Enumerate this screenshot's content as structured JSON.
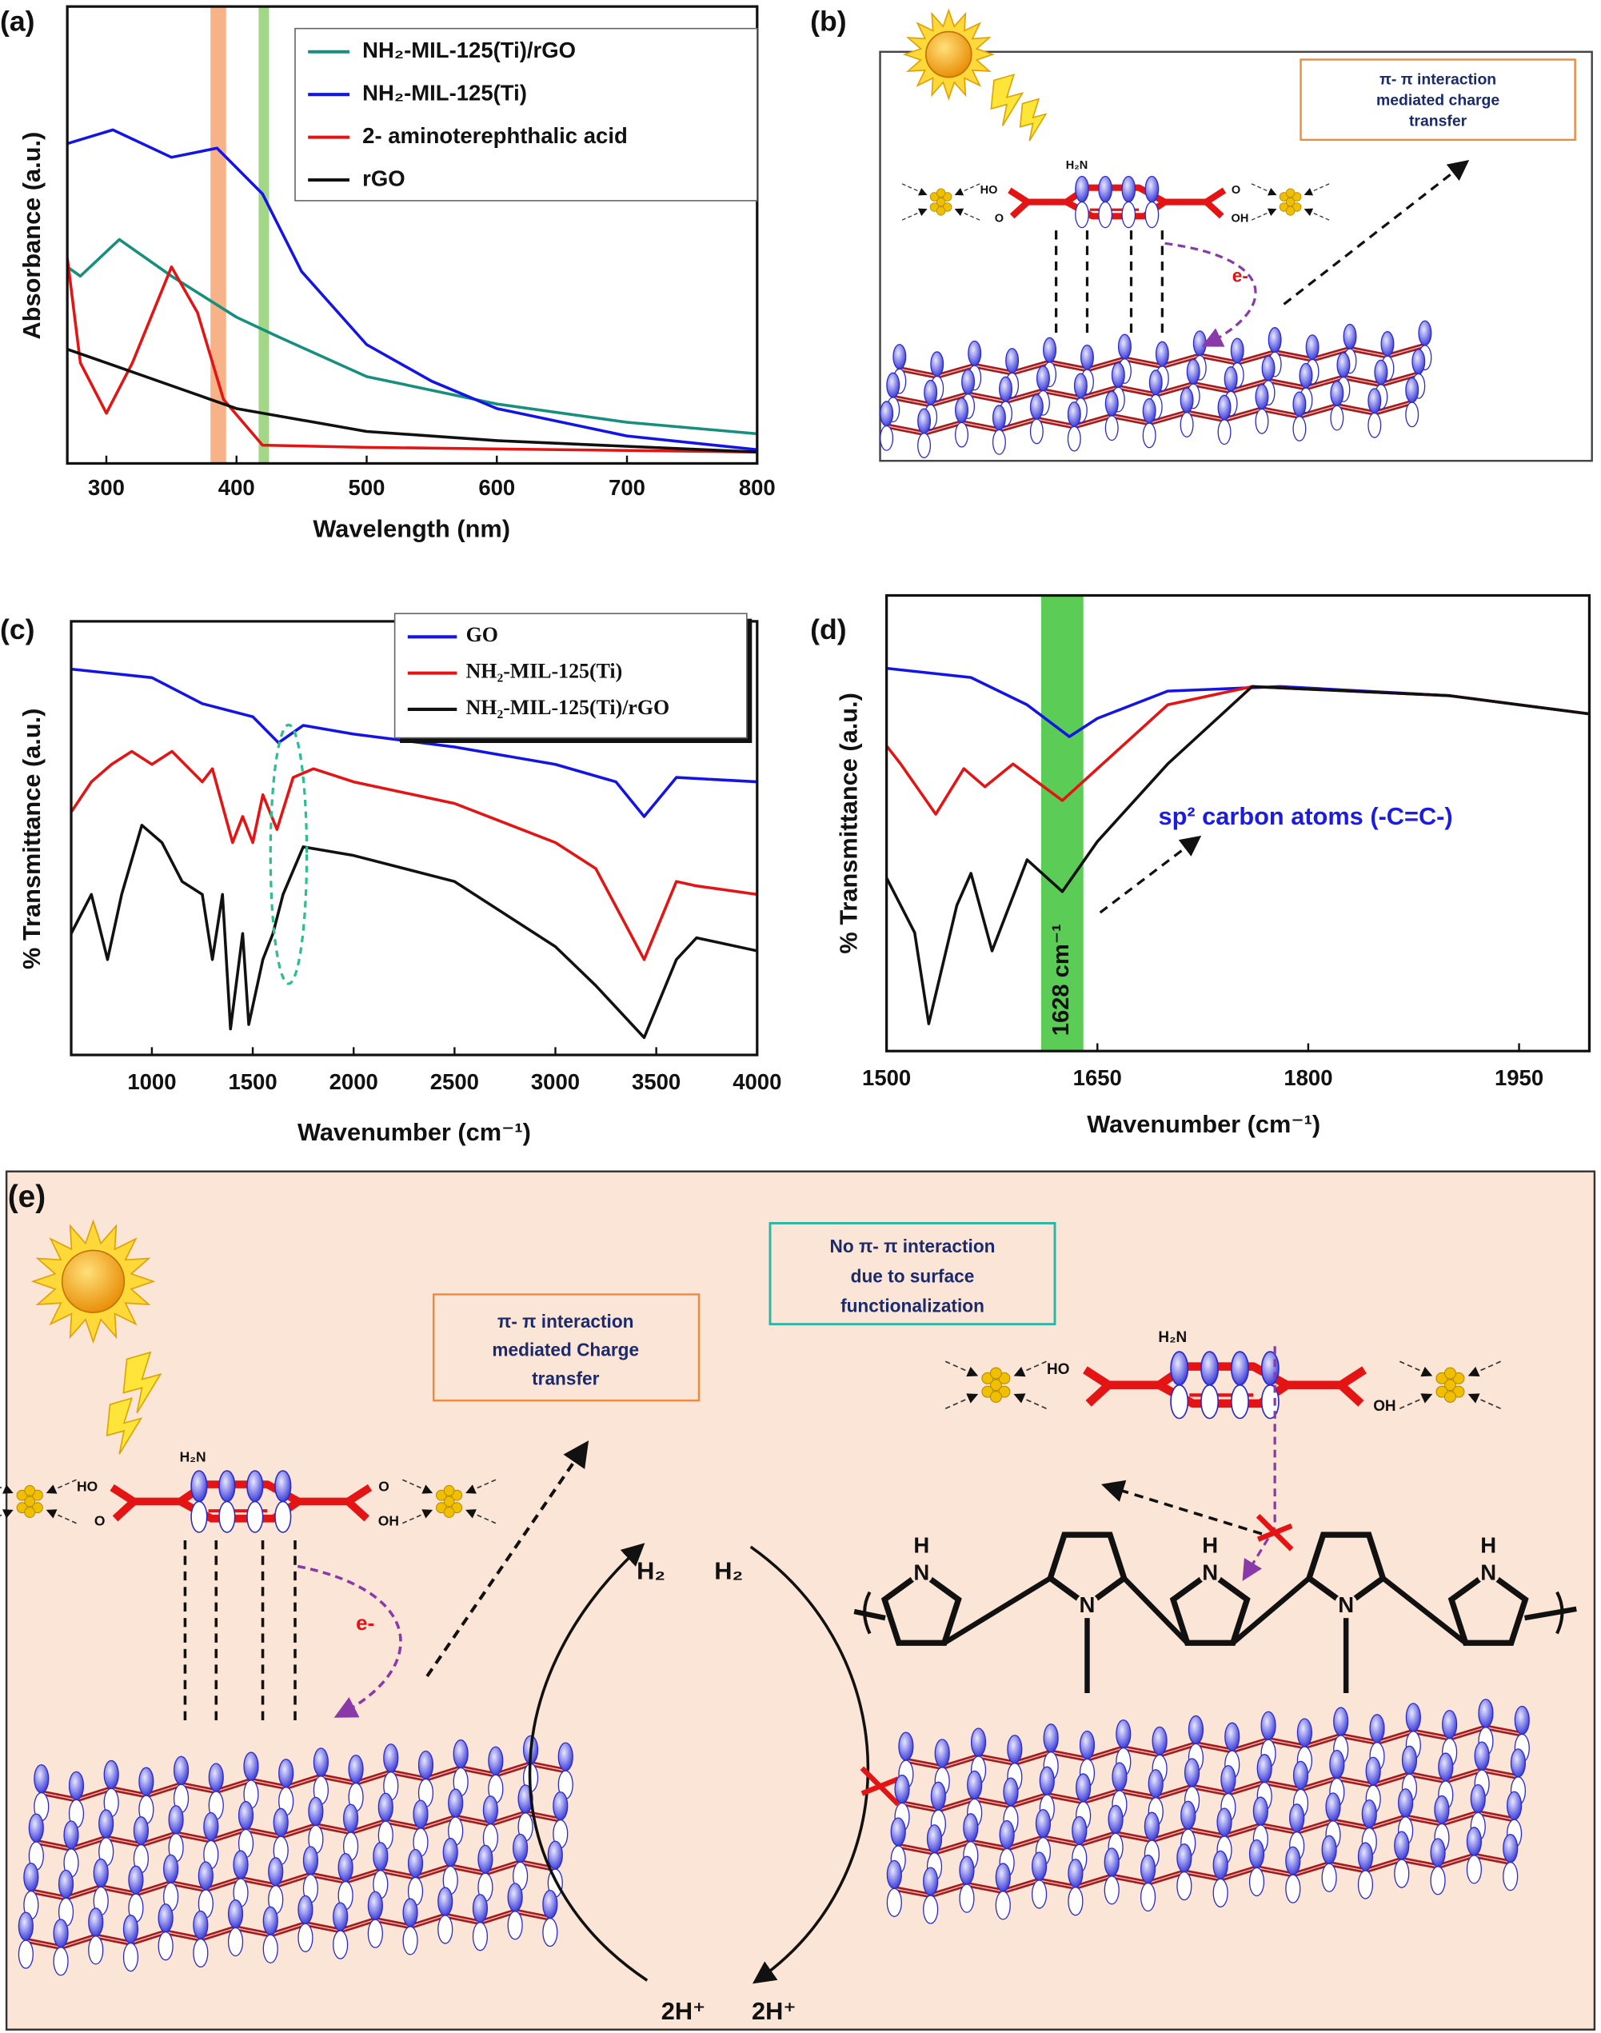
{
  "chart_data": [
    {
      "type": "line",
      "label": "(a)",
      "xlabel": "Wavelength (nm)",
      "ylabel": "Absorbance (a.u.)",
      "xlim": [
        270,
        800
      ],
      "ylim": [
        0,
        1
      ],
      "xticks": [
        300,
        400,
        500,
        600,
        700,
        800
      ],
      "legend": "upper right",
      "bands": [
        {
          "range": [
            380,
            392
          ],
          "color": "#f7a472"
        },
        {
          "range": [
            417,
            425
          ],
          "color": "#93cf72"
        }
      ],
      "series": [
        {
          "name": "NH₂-MIL-125(Ti)/rGO",
          "color": "#16907c",
          "x": [
            270,
            280,
            310,
            350,
            400,
            430,
            500,
            600,
            700,
            800
          ],
          "values": [
            0.43,
            0.41,
            0.49,
            0.41,
            0.32,
            0.28,
            0.19,
            0.13,
            0.09,
            0.065
          ]
        },
        {
          "name": "NH₂-MIL-125(Ti)",
          "color": "#1414e6",
          "x": [
            270,
            305,
            350,
            385,
            420,
            450,
            500,
            550,
            600,
            700,
            800
          ],
          "values": [
            0.7,
            0.73,
            0.67,
            0.69,
            0.59,
            0.42,
            0.26,
            0.18,
            0.12,
            0.06,
            0.03
          ]
        },
        {
          "name": "2- aminoterephthalic acid",
          "color": "#e41414",
          "x": [
            270,
            280,
            300,
            320,
            350,
            370,
            390,
            420,
            500,
            800
          ],
          "values": [
            0.45,
            0.22,
            0.11,
            0.22,
            0.43,
            0.33,
            0.14,
            0.04,
            0.035,
            0.025
          ]
        },
        {
          "name": "rGO",
          "color": "#111111",
          "x": [
            270,
            300,
            400,
            500,
            600,
            800
          ],
          "values": [
            0.25,
            0.22,
            0.12,
            0.07,
            0.05,
            0.025
          ]
        }
      ]
    },
    {
      "type": "line",
      "label": "(c)",
      "xlabel": "Wavenumber (cm⁻¹)",
      "ylabel": "% Transmittance (a.u.)",
      "xlim": [
        600,
        4000
      ],
      "ylim": [
        0,
        1
      ],
      "xticks": [
        1000,
        1500,
        2000,
        2500,
        3000,
        3500,
        4000
      ],
      "legend": "upper right",
      "series": [
        {
          "name": "GO",
          "color": "#1414e6",
          "x": [
            600,
            1000,
            1250,
            1500,
            1628,
            1750,
            2000,
            2500,
            3000,
            3300,
            3440,
            3600,
            4000
          ],
          "values": [
            0.89,
            0.87,
            0.81,
            0.78,
            0.72,
            0.76,
            0.74,
            0.71,
            0.67,
            0.63,
            0.55,
            0.64,
            0.63
          ]
        },
        {
          "name": "NH₂-MIL-125(Ti)",
          "color": "#e41414",
          "x": [
            600,
            700,
            800,
            900,
            1000,
            1100,
            1250,
            1300,
            1400,
            1450,
            1500,
            1550,
            1620,
            1700,
            1800,
            2000,
            2500,
            3000,
            3200,
            3440,
            3600,
            3700,
            4000
          ],
          "values": [
            0.56,
            0.63,
            0.67,
            0.7,
            0.67,
            0.7,
            0.63,
            0.66,
            0.49,
            0.55,
            0.49,
            0.6,
            0.52,
            0.64,
            0.66,
            0.63,
            0.58,
            0.49,
            0.43,
            0.22,
            0.4,
            0.39,
            0.37
          ]
        },
        {
          "name": "NH₂-MIL-125(Ti)/rGO",
          "color": "#111111",
          "x": [
            600,
            700,
            780,
            850,
            950,
            1050,
            1150,
            1250,
            1300,
            1350,
            1390,
            1450,
            1480,
            1550,
            1600,
            1650,
            1750,
            2000,
            2500,
            3000,
            3200,
            3440,
            3600,
            3700,
            4000
          ],
          "values": [
            0.28,
            0.37,
            0.22,
            0.37,
            0.53,
            0.49,
            0.4,
            0.37,
            0.22,
            0.37,
            0.06,
            0.28,
            0.07,
            0.22,
            0.28,
            0.37,
            0.48,
            0.46,
            0.4,
            0.25,
            0.16,
            0.04,
            0.22,
            0.27,
            0.24
          ]
        }
      ]
    },
    {
      "type": "line",
      "label": "(d)",
      "xlabel": "Wavenumber (cm⁻¹)",
      "ylabel": "% Transmittance (a.u.)",
      "xlim": [
        1500,
        2000
      ],
      "ylim": [
        0,
        1
      ],
      "xticks": [
        1500,
        1650,
        1800,
        1950
      ],
      "bands": [
        {
          "range": [
            1610,
            1640
          ],
          "color": "#3ec43a",
          "label": "1628 cm⁻¹"
        }
      ],
      "annotation": "sp² carbon atoms (-C=C-)",
      "series": [
        {
          "color": "#1414e6",
          "x": [
            1500,
            1560,
            1600,
            1630,
            1650,
            1700,
            1780,
            1900,
            2000
          ],
          "values": [
            0.84,
            0.82,
            0.76,
            0.69,
            0.73,
            0.79,
            0.8,
            0.78,
            0.74
          ]
        },
        {
          "color": "#e41414",
          "x": [
            1500,
            1510,
            1535,
            1555,
            1570,
            1590,
            1625,
            1650,
            1700,
            1760,
            1900,
            2000
          ],
          "values": [
            0.67,
            0.63,
            0.52,
            0.62,
            0.58,
            0.63,
            0.55,
            0.62,
            0.76,
            0.8,
            0.78,
            0.74
          ]
        },
        {
          "color": "#111111",
          "x": [
            1500,
            1520,
            1530,
            1550,
            1560,
            1575,
            1600,
            1625,
            1650,
            1700,
            1760,
            1900,
            2000
          ],
          "values": [
            0.38,
            0.26,
            0.06,
            0.32,
            0.39,
            0.22,
            0.42,
            0.35,
            0.46,
            0.63,
            0.8,
            0.78,
            0.74
          ]
        }
      ]
    }
  ],
  "diagram_b": {
    "label": "(b)",
    "box_lines": [
      "π- π interaction",
      "mediated charge",
      "transfer"
    ],
    "molecule": {
      "amine": "H₂N",
      "hydroxyl_left": "HO",
      "oxygen_left": "O",
      "oxygen_right": "O",
      "hydroxyl_right": "OH"
    },
    "electron": "e-"
  },
  "diagram_e": {
    "label": "(e)",
    "left_box_lines": [
      "π- π interaction",
      "mediated Charge",
      "transfer"
    ],
    "right_box_lines": [
      "No π- π interaction",
      "due to surface",
      "functionalization"
    ],
    "left_molecule": {
      "amine": "H₂N",
      "hydroxyl_left": "HO",
      "oxygen_left": "O",
      "oxygen_right": "O",
      "hydroxyl_right": "OH"
    },
    "right_molecule": {
      "amine": "H₂N",
      "hydroxyl_left": "HO",
      "hydroxyl_right": "OH"
    },
    "electron": "e-",
    "products": [
      "H₂",
      "H₂"
    ],
    "reactants": [
      "2H⁺",
      "2H⁺"
    ],
    "pyrrole": {
      "hydrogen": "H",
      "nitrogen": "N"
    }
  }
}
